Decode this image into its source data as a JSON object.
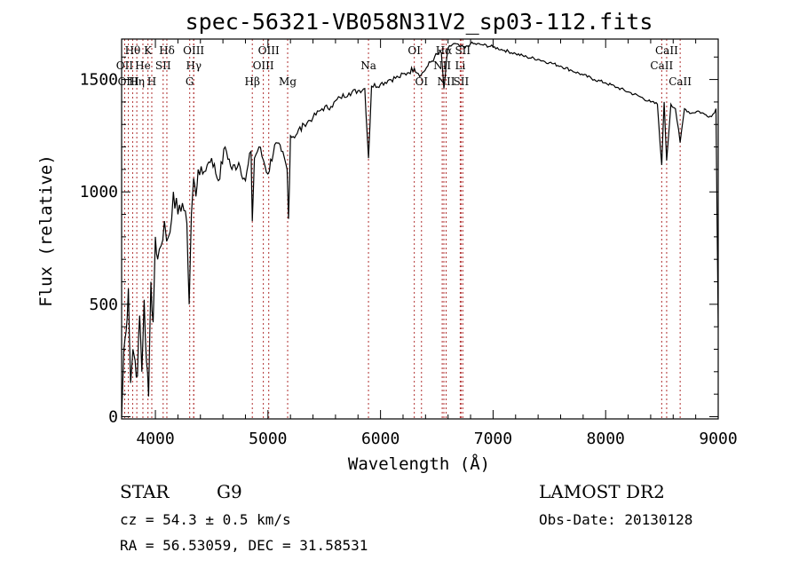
{
  "chart_data": {
    "type": "line",
    "title": "spec-56321-VB058N31V2_sp03-112.fits",
    "xlabel": "Wavelength (Å)",
    "ylabel": "Flux (relative)",
    "xlim": [
      3700,
      9000
    ],
    "ylim": [
      -10,
      1680
    ],
    "x_ticks": [
      4000,
      5000,
      6000,
      7000,
      8000,
      9000
    ],
    "y_ticks": [
      0,
      500,
      1000,
      1500
    ],
    "x_tick_labels": [
      "4000",
      "5000",
      "6000",
      "7000",
      "8000",
      "9000"
    ],
    "y_tick_labels": [
      "0",
      "500",
      "1000",
      "1500"
    ],
    "series": [
      {
        "x": [
          3700,
          3720,
          3740,
          3760,
          3780,
          3800,
          3820,
          3840,
          3860,
          3880,
          3900,
          3920,
          3940,
          3960,
          3980,
          4000,
          4020,
          4050,
          4080,
          4100,
          4130,
          4160,
          4200,
          4240,
          4280,
          4300,
          4320,
          4340,
          4360,
          4380,
          4420,
          4460,
          4500,
          4560,
          4620,
          4680,
          4740,
          4800,
          4850,
          4861,
          4880,
          4920,
          4960,
          5000,
          5060,
          5120,
          5170,
          5183,
          5200,
          5260,
          5320,
          5400,
          5480,
          5560,
          5640,
          5720,
          5800,
          5860,
          5893,
          5920,
          6000,
          6080,
          6160,
          6240,
          6300,
          6360,
          6420,
          6480,
          6540,
          6563,
          6600,
          6650,
          6700,
          6750,
          6800,
          6900,
          7000,
          7100,
          7200,
          7300,
          7400,
          7500,
          7600,
          7700,
          7800,
          7900,
          8000,
          8100,
          8200,
          8300,
          8400,
          8460,
          8498,
          8520,
          8542,
          8580,
          8620,
          8662,
          8700,
          8760,
          8820,
          8880,
          8940,
          8980,
          9000
        ],
        "y": [
          0,
          300,
          380,
          570,
          150,
          300,
          250,
          180,
          450,
          200,
          520,
          250,
          90,
          600,
          420,
          800,
          700,
          760,
          870,
          780,
          820,
          1000,
          900,
          950,
          860,
          500,
          900,
          1060,
          980,
          1100,
          1080,
          1120,
          1150,
          1050,
          1200,
          1100,
          1130,
          1050,
          1180,
          870,
          1150,
          1200,
          1140,
          1080,
          1210,
          1180,
          1100,
          880,
          1250,
          1260,
          1300,
          1330,
          1370,
          1380,
          1420,
          1440,
          1450,
          1460,
          1150,
          1470,
          1480,
          1500,
          1510,
          1530,
          1550,
          1520,
          1560,
          1600,
          1620,
          1460,
          1640,
          1660,
          1650,
          1640,
          1660,
          1655,
          1645,
          1630,
          1615,
          1600,
          1590,
          1575,
          1560,
          1540,
          1520,
          1500,
          1485,
          1465,
          1445,
          1425,
          1400,
          1390,
          1120,
          1400,
          1140,
          1390,
          1370,
          1220,
          1370,
          1350,
          1360,
          1345,
          1335,
          1370,
          400
        ]
      }
    ],
    "lines": [
      {
        "label": "Hθ",
        "x": 3798,
        "row": 1
      },
      {
        "label": "OII",
        "x": 3727,
        "row": 2
      },
      {
        "label": "OIII",
        "x": 3760,
        "row": 3
      },
      {
        "label": "Hη",
        "x": 3835,
        "row": 3
      },
      {
        "label": "He",
        "x": 3889,
        "row": 2
      },
      {
        "label": "K",
        "x": 3934,
        "row": 1
      },
      {
        "label": "H",
        "x": 3968,
        "row": 3
      },
      {
        "label": "SII",
        "x": 4069,
        "row": 2
      },
      {
        "label": "Hδ",
        "x": 4102,
        "row": 1
      },
      {
        "label": "G",
        "x": 4305,
        "row": 3
      },
      {
        "label": "OIII",
        "x": 4340,
        "row": 1
      },
      {
        "label": "Hγ",
        "x": 4341,
        "row": 2
      },
      {
        "label": "Hβ",
        "x": 4861,
        "row": 3
      },
      {
        "label": "OIII",
        "x": 4959,
        "row": 2
      },
      {
        "label": "OIII",
        "x": 5007,
        "row": 1
      },
      {
        "label": "Mg",
        "x": 5175,
        "row": 3
      },
      {
        "label": "Na",
        "x": 5893,
        "row": 2
      },
      {
        "label": "OI",
        "x": 6300,
        "row": 1
      },
      {
        "label": "OI",
        "x": 6364,
        "row": 3
      },
      {
        "label": "NII",
        "x": 6548,
        "row": 2
      },
      {
        "label": "Hα",
        "x": 6563,
        "row": 1
      },
      {
        "label": "NII",
        "x": 6583,
        "row": 3
      },
      {
        "label": "SII",
        "x": 6716,
        "row": 3
      },
      {
        "label": "SII",
        "x": 6731,
        "row": 1
      },
      {
        "label": "Li",
        "x": 6708,
        "row": 2
      },
      {
        "label": "CaII",
        "x": 8498,
        "row": 2
      },
      {
        "label": "CaII",
        "x": 8542,
        "row": 1
      },
      {
        "label": "CaII",
        "x": 8662,
        "row": 3
      }
    ]
  },
  "info": {
    "class": "STAR",
    "subclass": "G9",
    "cz": "cz = 54.3 ± 0.5 km/s",
    "coords": "RA =  56.53059, DEC =  31.58531",
    "survey": "LAMOST DR2",
    "obs_date": "Obs-Date: 20130128"
  }
}
